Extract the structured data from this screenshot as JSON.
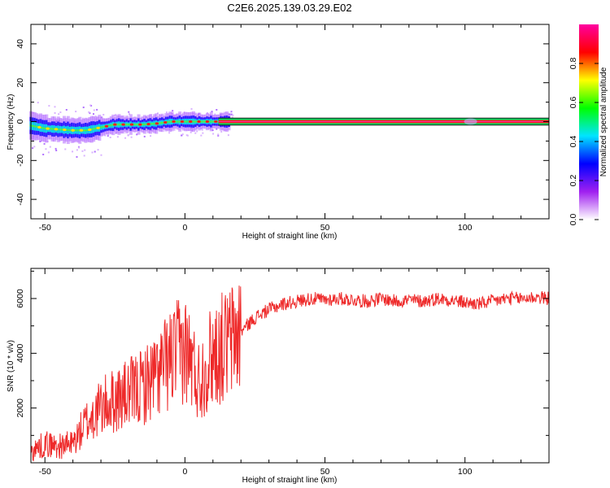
{
  "title": "C2E6.2025.139.03.29.E02",
  "chart_data": [
    {
      "type": "heatmap",
      "xlabel": "Height of straight line (km)",
      "ylabel": "Frequency (Hz)",
      "xlim": [
        -55,
        130
      ],
      "ylim": [
        -50,
        50
      ],
      "x_ticks": [
        -50,
        0,
        50,
        100
      ],
      "y_ticks": [
        -40,
        -20,
        0,
        20,
        40
      ],
      "colorbar": {
        "label": "Normalized spectral amplitude",
        "range": [
          0,
          1
        ],
        "ticks": [
          "0.0",
          "0.2",
          "0.4",
          "0.6",
          "0.8"
        ],
        "colors": [
          "#ffffff",
          "#a020f0",
          "#0000ff",
          "#00e5ff",
          "#00ff00",
          "#ffff00",
          "#ff0000",
          "#ff00a0"
        ]
      },
      "ridge": {
        "x": [
          -55,
          -50,
          -45,
          -40,
          -35,
          -30,
          -25,
          -20,
          -15,
          -10,
          -5,
          0,
          5,
          10,
          15,
          20,
          50,
          100,
          130
        ],
        "freq": [
          -2,
          -3.5,
          -4,
          -4.5,
          -4.5,
          -3,
          -1.5,
          -1.5,
          -1.5,
          -1,
          0,
          0,
          0,
          0,
          0,
          0,
          0,
          0,
          0
        ]
      },
      "band_hz": [
        -2,
        2
      ]
    },
    {
      "type": "line",
      "xlabel": "Height of straight line (km)",
      "ylabel": "SNR (10 * v/v)",
      "xlim": [
        -55,
        130
      ],
      "ylim": [
        0,
        7100
      ],
      "x_ticks": [
        -50,
        0,
        50,
        100
      ],
      "y_ticks": [
        2000,
        4000,
        6000
      ],
      "line_color": "#ee2a2a",
      "series": [
        {
          "x": [
            -55,
            -50,
            -45,
            -40,
            -35,
            -30,
            -25,
            -20,
            -15,
            -10,
            -5,
            0,
            5,
            10,
            15,
            20,
            25,
            30,
            35,
            40,
            45,
            50,
            55,
            60,
            65,
            70,
            75,
            80,
            85,
            90,
            95,
            100,
            105,
            110,
            115,
            120,
            125,
            130
          ],
          "values": [
            400,
            700,
            600,
            700,
            1500,
            2000,
            2300,
            2500,
            2800,
            3200,
            3800,
            4200,
            3000,
            4000,
            4300,
            4800,
            5300,
            5600,
            5800,
            5900,
            6000,
            5950,
            6000,
            5950,
            5900,
            6000,
            5900,
            5950,
            5900,
            6000,
            5950,
            5850,
            5800,
            5900,
            6000,
            6000,
            6050,
            6000
          ]
        }
      ],
      "noise": 250
    }
  ]
}
